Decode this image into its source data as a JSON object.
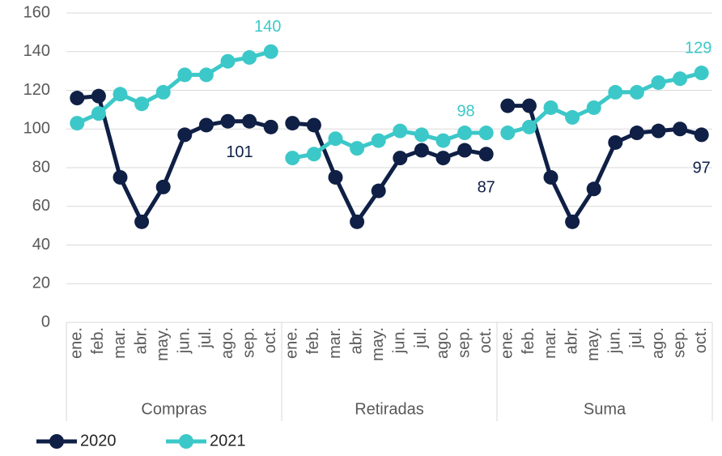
{
  "chart_data": {
    "type": "line",
    "groups": [
      "Compras",
      "Retiradas",
      "Suma"
    ],
    "categories": [
      "ene.",
      "feb.",
      "mar.",
      "abr.",
      "may.",
      "jun.",
      "jul.",
      "ago.",
      "sep.",
      "oct."
    ],
    "series": [
      {
        "name": "2020",
        "color": "#0f1f45",
        "values": [
          [
            116,
            117,
            75,
            52,
            70,
            97,
            102,
            104,
            104,
            101
          ],
          [
            103,
            102,
            75,
            52,
            68,
            85,
            89,
            85,
            89,
            87
          ],
          [
            112,
            112,
            75,
            52,
            69,
            93,
            98,
            99,
            100,
            97
          ]
        ]
      },
      {
        "name": "2021",
        "color": "#3cc8c8",
        "values": [
          [
            103,
            108,
            118,
            113,
            119,
            128,
            128,
            135,
            137,
            140
          ],
          [
            85,
            87,
            95,
            90,
            94,
            99,
            97,
            94,
            98,
            98
          ],
          [
            98,
            101,
            111,
            106,
            111,
            119,
            119,
            124,
            126,
            129
          ]
        ]
      }
    ],
    "data_labels": "last",
    "ylim": [
      0,
      160
    ],
    "yticks": [
      0,
      20,
      40,
      60,
      80,
      100,
      120,
      140,
      160
    ],
    "grid": true
  }
}
